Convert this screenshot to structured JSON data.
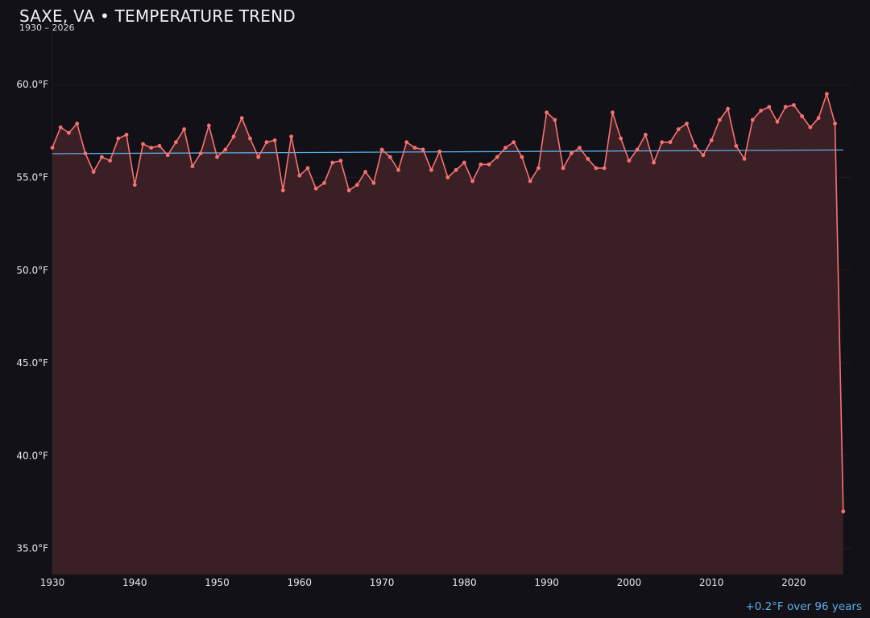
{
  "title": "SAXE, VA • TEMPERATURE TREND",
  "subtitle": "1930 – 2026",
  "footnote": "+0.2°F over 96 years",
  "colors": {
    "background": "#121117",
    "line": "#f87171",
    "area": "#3a1f25",
    "trend": "#5aaee6",
    "grid": "#211c22",
    "text": "#e6e6ea"
  },
  "chart_data": {
    "type": "line",
    "title": "SAXE, VA • TEMPERATURE TREND",
    "subtitle": "1930 – 2026",
    "xlabel": "",
    "ylabel": "",
    "xlim": [
      1930,
      2027
    ],
    "ylim": [
      33.6,
      63.0
    ],
    "grid": true,
    "x_ticks": [
      1930,
      1940,
      1950,
      1960,
      1970,
      1980,
      1990,
      2000,
      2010,
      2020
    ],
    "x_tick_labels": [
      "1930",
      "1940",
      "1950",
      "1960",
      "1970",
      "1980",
      "1990",
      "2000",
      "2010",
      "2020"
    ],
    "y_ticks": [
      35,
      40,
      45,
      50,
      55,
      60
    ],
    "y_tick_labels": [
      "35.0°F",
      "40.0°F",
      "45.0°F",
      "50.0°F",
      "55.0°F",
      "60.0°F"
    ],
    "series": [
      {
        "x": [
          1930,
          1931,
          1932,
          1933,
          1934,
          1935,
          1936,
          1937,
          1938,
          1939,
          1940,
          1941,
          1942,
          1943,
          1944,
          1945,
          1946,
          1947,
          1948,
          1949,
          1950,
          1951,
          1952,
          1953,
          1954,
          1955,
          1956,
          1957,
          1958,
          1959,
          1960,
          1961,
          1962,
          1963,
          1964,
          1965,
          1966,
          1967,
          1968,
          1969,
          1970,
          1971,
          1972,
          1973,
          1974,
          1975,
          1976,
          1977,
          1978,
          1979,
          1980,
          1981,
          1982,
          1983,
          1984,
          1985,
          1986,
          1987,
          1988,
          1989,
          1990,
          1991,
          1992,
          1993,
          1994,
          1995,
          1996,
          1997,
          1998,
          1999,
          2000,
          2001,
          2002,
          2003,
          2004,
          2005,
          2006,
          2007,
          2008,
          2009,
          2010,
          2011,
          2012,
          2013,
          2014,
          2015,
          2016,
          2017,
          2018,
          2019,
          2020,
          2021,
          2022,
          2023,
          2024,
          2025,
          2026
        ],
        "values": [
          56.6,
          57.7,
          57.4,
          57.9,
          56.3,
          55.3,
          56.1,
          55.9,
          57.1,
          57.3,
          54.6,
          56.8,
          56.6,
          56.7,
          56.2,
          56.9,
          57.6,
          55.6,
          56.3,
          57.8,
          56.1,
          56.5,
          57.2,
          58.2,
          57.1,
          56.1,
          56.9,
          57.0,
          54.3,
          57.2,
          55.1,
          55.5,
          54.4,
          54.7,
          55.8,
          55.9,
          54.3,
          54.6,
          55.3,
          54.7,
          56.5,
          56.1,
          55.4,
          56.9,
          56.6,
          56.5,
          55.4,
          56.4,
          55.0,
          55.4,
          55.8,
          54.8,
          55.7,
          55.7,
          56.1,
          56.6,
          56.9,
          56.1,
          54.8,
          55.5,
          58.5,
          58.1,
          55.5,
          56.3,
          56.6,
          56.0,
          55.5,
          55.5,
          58.5,
          57.1,
          55.9,
          56.5,
          57.3,
          55.8,
          56.9,
          56.9,
          57.6,
          57.9,
          56.7,
          56.2,
          57.0,
          58.1,
          58.7,
          56.7,
          56.0,
          58.1,
          58.6,
          58.8,
          58.0,
          58.8,
          58.9,
          58.3,
          57.7,
          58.2,
          59.5,
          57.9,
          37.0
        ]
      },
      {
        "x": [
          1930,
          2026
        ],
        "values": [
          56.28,
          56.48
        ]
      }
    ]
  }
}
